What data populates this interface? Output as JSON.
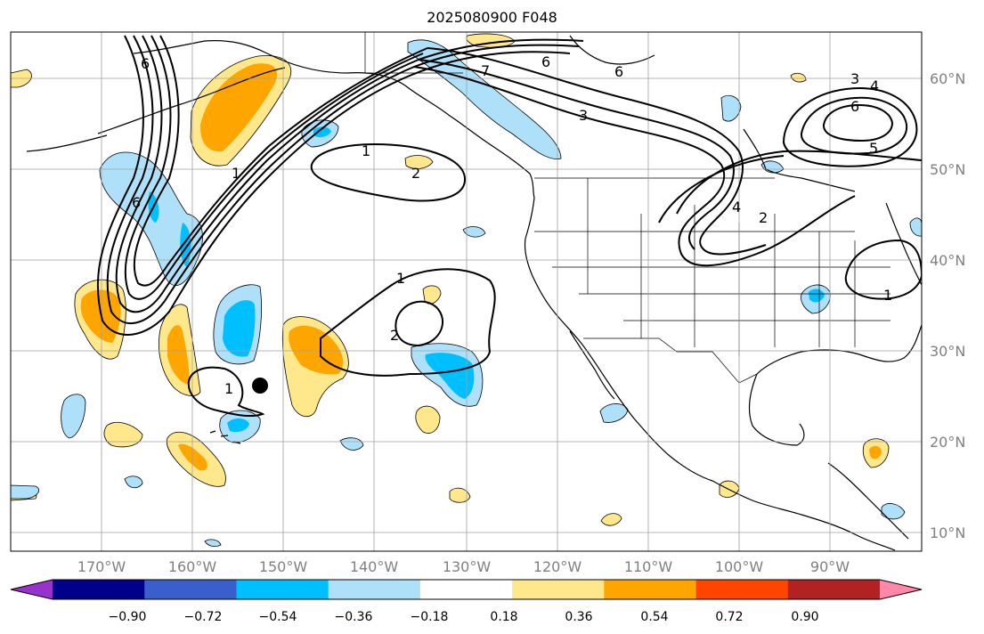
{
  "title": "2025080900 F048",
  "longitude_labels": [
    "170°W",
    "160°W",
    "150°W",
    "140°W",
    "130°W",
    "120°W",
    "110°W",
    "100°W",
    "90°W"
  ],
  "latitude_labels": [
    "60°N",
    "50°N",
    "40°N",
    "30°N",
    "20°N",
    "10°N"
  ],
  "colorbar": {
    "tick_labels": [
      "−0.90",
      "−0.72",
      "−0.54",
      "−0.36",
      "−0.18",
      "0.18",
      "0.36",
      "0.54",
      "0.72",
      "0.90"
    ],
    "colors": [
      "#9932cc",
      "#00008b",
      "#3a5fcd",
      "#00bfff",
      "#afe0fa",
      "#ffffff",
      "#ffe88c",
      "#ffa500",
      "#ff4500",
      "#b22222",
      "#ff88aa"
    ],
    "extend": "both"
  },
  "contour_labels": [
    "6",
    "6",
    "1",
    "2",
    "1",
    "1",
    "2",
    "1",
    "7",
    "6",
    "3",
    "6",
    "3",
    "4",
    "5",
    "2",
    "4",
    "1"
  ],
  "shading_colors": {
    "neg_light": "#afe0fa",
    "neg_mid": "#00bfff",
    "pos_light": "#ffe88c",
    "pos_mid": "#ffa500"
  },
  "marker": "black-dot"
}
